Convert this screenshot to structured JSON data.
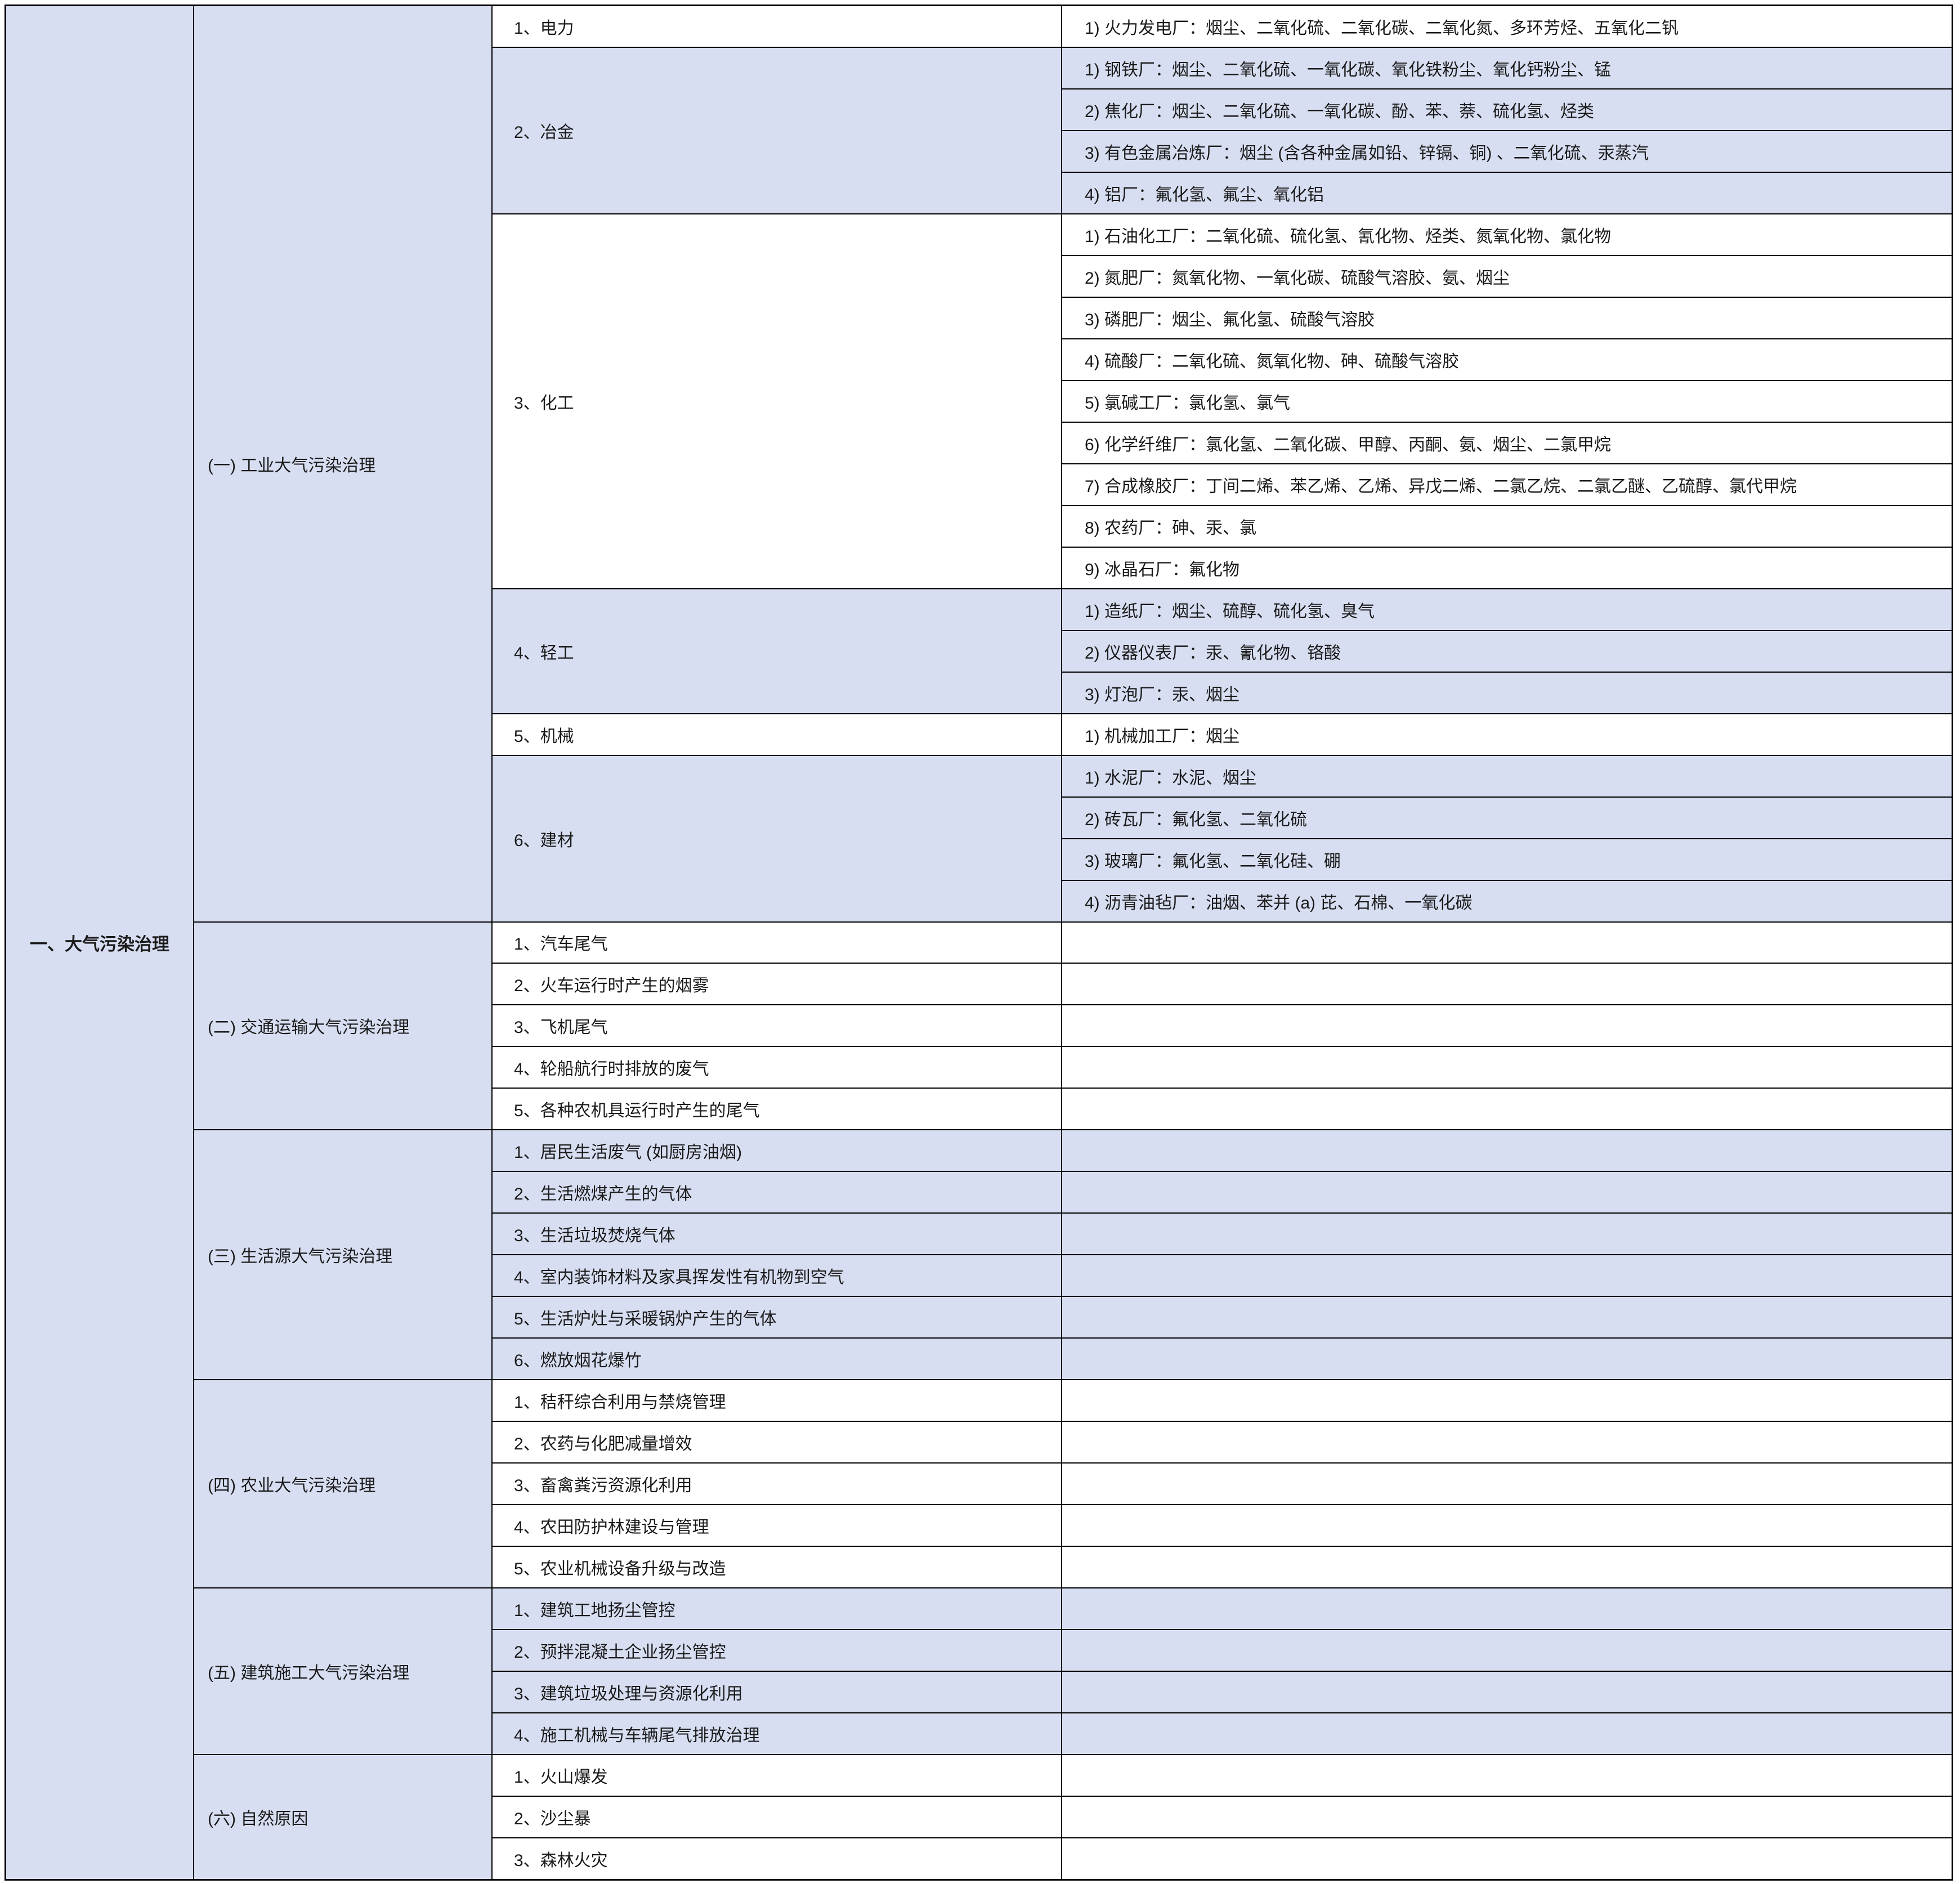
{
  "title": "一、大气污染治理",
  "colors": {
    "lavender": "#d8def2",
    "row_white": "#ffffff",
    "border": "#000000",
    "text": "#1a1a1a"
  },
  "sections": [
    {
      "label": "(一) 工业大气污染治理",
      "groups": [
        {
          "label": "1、电力",
          "shade": "white",
          "details": [
            "1) 火力发电厂：烟尘、二氧化硫、二氧化碳、二氧化氮、多环芳烃、五氧化二钒"
          ]
        },
        {
          "label": "2、冶金",
          "shade": "blue",
          "details": [
            "1) 钢铁厂：烟尘、二氧化硫、一氧化碳、氧化铁粉尘、氧化钙粉尘、锰",
            "2) 焦化厂：烟尘、二氧化硫、一氧化碳、酚、苯、萘、硫化氢、烃类",
            "3) 有色金属冶炼厂：烟尘 (含各种金属如铅、锌镉、铜) 、二氧化硫、汞蒸汽",
            "4) 铝厂：氟化氢、氟尘、氧化铝"
          ]
        },
        {
          "label": "3、化工",
          "shade": "white",
          "details": [
            "1) 石油化工厂：二氧化硫、硫化氢、氰化物、烃类、氮氧化物、氯化物",
            "2) 氮肥厂：氮氧化物、一氧化碳、硫酸气溶胶、氨、烟尘",
            "3) 磷肥厂：烟尘、氟化氢、硫酸气溶胶",
            "4) 硫酸厂：二氧化硫、氮氧化物、砷、硫酸气溶胶",
            "5) 氯碱工厂：氯化氢、氯气",
            "6) 化学纤维厂：氯化氢、二氧化碳、甲醇、丙酮、氨、烟尘、二氯甲烷",
            "7) 合成橡胶厂：丁间二烯、苯乙烯、乙烯、异戊二烯、二氯乙烷、二氯乙醚、乙硫醇、氯代甲烷",
            "8) 农药厂：砷、汞、氯",
            "9) 冰晶石厂：氟化物"
          ]
        },
        {
          "label": "4、轻工",
          "shade": "blue",
          "details": [
            "1) 造纸厂：烟尘、硫醇、硫化氢、臭气",
            "2) 仪器仪表厂：汞、氰化物、铬酸",
            "3) 灯泡厂：汞、烟尘"
          ]
        },
        {
          "label": "5、机械",
          "shade": "white",
          "details": [
            "1) 机械加工厂：烟尘"
          ]
        },
        {
          "label": "6、建材",
          "shade": "blue",
          "details": [
            "1) 水泥厂：水泥、烟尘",
            "2) 砖瓦厂：氟化氢、二氧化硫",
            "3) 玻璃厂：氟化氢、二氧化硅、硼",
            "4) 沥青油毡厂：油烟、苯并 (a) 芘、石棉、一氧化碳"
          ]
        }
      ]
    },
    {
      "label": "(二) 交通运输大气污染治理",
      "groups": [
        {
          "label": "1、汽车尾气",
          "shade": "white",
          "details": [
            ""
          ]
        },
        {
          "label": "2、火车运行时产生的烟雾",
          "shade": "white",
          "details": [
            ""
          ]
        },
        {
          "label": "3、飞机尾气",
          "shade": "white",
          "details": [
            ""
          ]
        },
        {
          "label": "4、轮船航行时排放的废气",
          "shade": "white",
          "details": [
            ""
          ]
        },
        {
          "label": "5、各种农机具运行时产生的尾气",
          "shade": "white",
          "details": [
            ""
          ]
        }
      ]
    },
    {
      "label": "(三) 生活源大气污染治理",
      "groups": [
        {
          "label": "1、居民生活废气 (如厨房油烟)",
          "shade": "blue",
          "details": [
            ""
          ]
        },
        {
          "label": "2、生活燃煤产生的气体",
          "shade": "blue",
          "details": [
            ""
          ]
        },
        {
          "label": "3、生活垃圾焚烧气体",
          "shade": "blue",
          "details": [
            ""
          ]
        },
        {
          "label": "4、室内装饰材料及家具挥发性有机物到空气",
          "shade": "blue",
          "details": [
            ""
          ]
        },
        {
          "label": "5、生活炉灶与采暖锅炉产生的气体",
          "shade": "blue",
          "details": [
            ""
          ]
        },
        {
          "label": "6、燃放烟花爆竹",
          "shade": "blue",
          "details": [
            ""
          ]
        }
      ]
    },
    {
      "label": "(四) 农业大气污染治理",
      "groups": [
        {
          "label": "1、秸秆综合利用与禁烧管理",
          "shade": "white",
          "details": [
            ""
          ]
        },
        {
          "label": "2、农药与化肥减量增效",
          "shade": "white",
          "details": [
            ""
          ]
        },
        {
          "label": "3、畜禽粪污资源化利用",
          "shade": "white",
          "details": [
            ""
          ]
        },
        {
          "label": "4、农田防护林建设与管理",
          "shade": "white",
          "details": [
            ""
          ]
        },
        {
          "label": "5、农业机械设备升级与改造",
          "shade": "white",
          "details": [
            ""
          ]
        }
      ]
    },
    {
      "label": "(五) 建筑施工大气污染治理",
      "groups": [
        {
          "label": "1、建筑工地扬尘管控",
          "shade": "blue",
          "details": [
            ""
          ]
        },
        {
          "label": "2、预拌混凝土企业扬尘管控",
          "shade": "blue",
          "details": [
            ""
          ]
        },
        {
          "label": "3、建筑垃圾处理与资源化利用",
          "shade": "blue",
          "details": [
            ""
          ]
        },
        {
          "label": "4、施工机械与车辆尾气排放治理",
          "shade": "blue",
          "details": [
            ""
          ]
        }
      ]
    },
    {
      "label": "(六) 自然原因",
      "groups": [
        {
          "label": "1、火山爆发",
          "shade": "white",
          "details": [
            ""
          ]
        },
        {
          "label": "2、沙尘暴",
          "shade": "white",
          "details": [
            ""
          ]
        },
        {
          "label": "3、森林火灾",
          "shade": "white",
          "details": [
            ""
          ]
        }
      ]
    }
  ]
}
